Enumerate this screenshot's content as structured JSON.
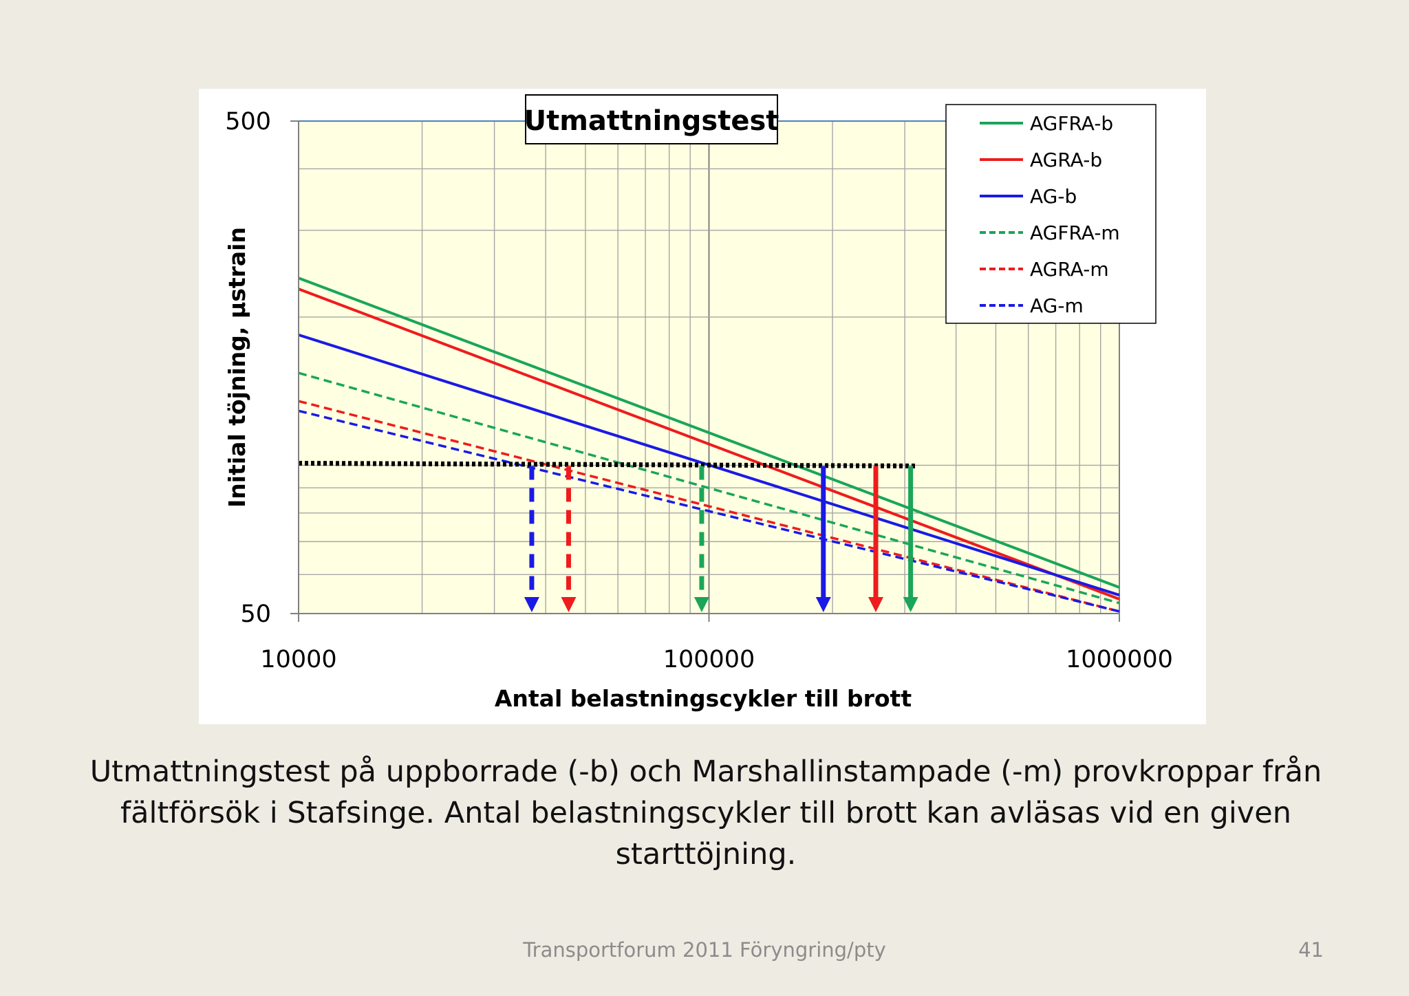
{
  "chart_data": {
    "type": "line",
    "title": "Utmattningstest",
    "xlabel": "Antal belastningscykler till brott",
    "ylabel": "Initial  töjning, µstrain",
    "x_scale": "log",
    "y_scale": "log",
    "xlim": [
      10000,
      1000000
    ],
    "ylim": [
      50,
      500
    ],
    "x_ticks": [
      "10000",
      "100000",
      "1000000"
    ],
    "y_ticks": [
      "500",
      "50"
    ],
    "grid": true,
    "legend_position": "top-right",
    "series": [
      {
        "name": "AGFRA-b",
        "color": "#1aa55a",
        "style": "solid",
        "x": [
          10000,
          1000000
        ],
        "y": [
          240,
          56.5
        ]
      },
      {
        "name": "AGRA-b",
        "color": "#ee1c1c",
        "style": "solid",
        "x": [
          10000,
          1000000
        ],
        "y": [
          228,
          53.5
        ]
      },
      {
        "name": "AG-b",
        "color": "#1a1ae6",
        "style": "solid",
        "x": [
          10000,
          1000000
        ],
        "y": [
          184,
          54.5
        ]
      },
      {
        "name": "AGFRA-m",
        "color": "#1aa55a",
        "style": "dashed",
        "x": [
          10000,
          1000000
        ],
        "y": [
          154,
          52.5
        ]
      },
      {
        "name": "AGRA-m",
        "color": "#ee1c1c",
        "style": "dashed",
        "x": [
          10000,
          1000000
        ],
        "y": [
          135,
          50.5
        ]
      },
      {
        "name": "AG-m",
        "color": "#1a1ae6",
        "style": "dashed",
        "x": [
          10000,
          1000000
        ],
        "y": [
          129,
          50.5
        ]
      }
    ],
    "reference_strain": 100,
    "reference_line": {
      "x": [
        10000,
        320000
      ],
      "y": [
        100,
        100
      ]
    },
    "readout_arrows": [
      {
        "series": "AG-m",
        "x": 37000,
        "style": "dashed",
        "color": "#1a1ae6"
      },
      {
        "series": "AGRA-m",
        "x": 45500,
        "style": "dashed",
        "color": "#ee1c1c"
      },
      {
        "series": "AGFRA-m",
        "x": 96000,
        "style": "dashed",
        "color": "#1aa55a"
      },
      {
        "series": "AG-b",
        "x": 190000,
        "style": "solid",
        "color": "#1a1ae6"
      },
      {
        "series": "AGRA-b",
        "x": 255000,
        "style": "solid",
        "color": "#ee1c1c"
      },
      {
        "series": "AGFRA-b",
        "x": 310000,
        "style": "solid",
        "color": "#1aa55a"
      }
    ],
    "colors": {
      "plot_background": "#ffffe1",
      "grid": "#a6a6a6",
      "top_gridline": "#4f81bd"
    }
  },
  "caption": {
    "lines": [
      "Utmattningstest på uppborrade (-b) och Marshallinstampade (-m) provkroppar från",
      "fältförsök i Stafsinge. Antal belastningscykler till brott kan avläsas vid en given",
      "starttöjning."
    ]
  },
  "footer": {
    "text": "Transportforum 2011 Föryngring/pty",
    "page_number": "41"
  }
}
